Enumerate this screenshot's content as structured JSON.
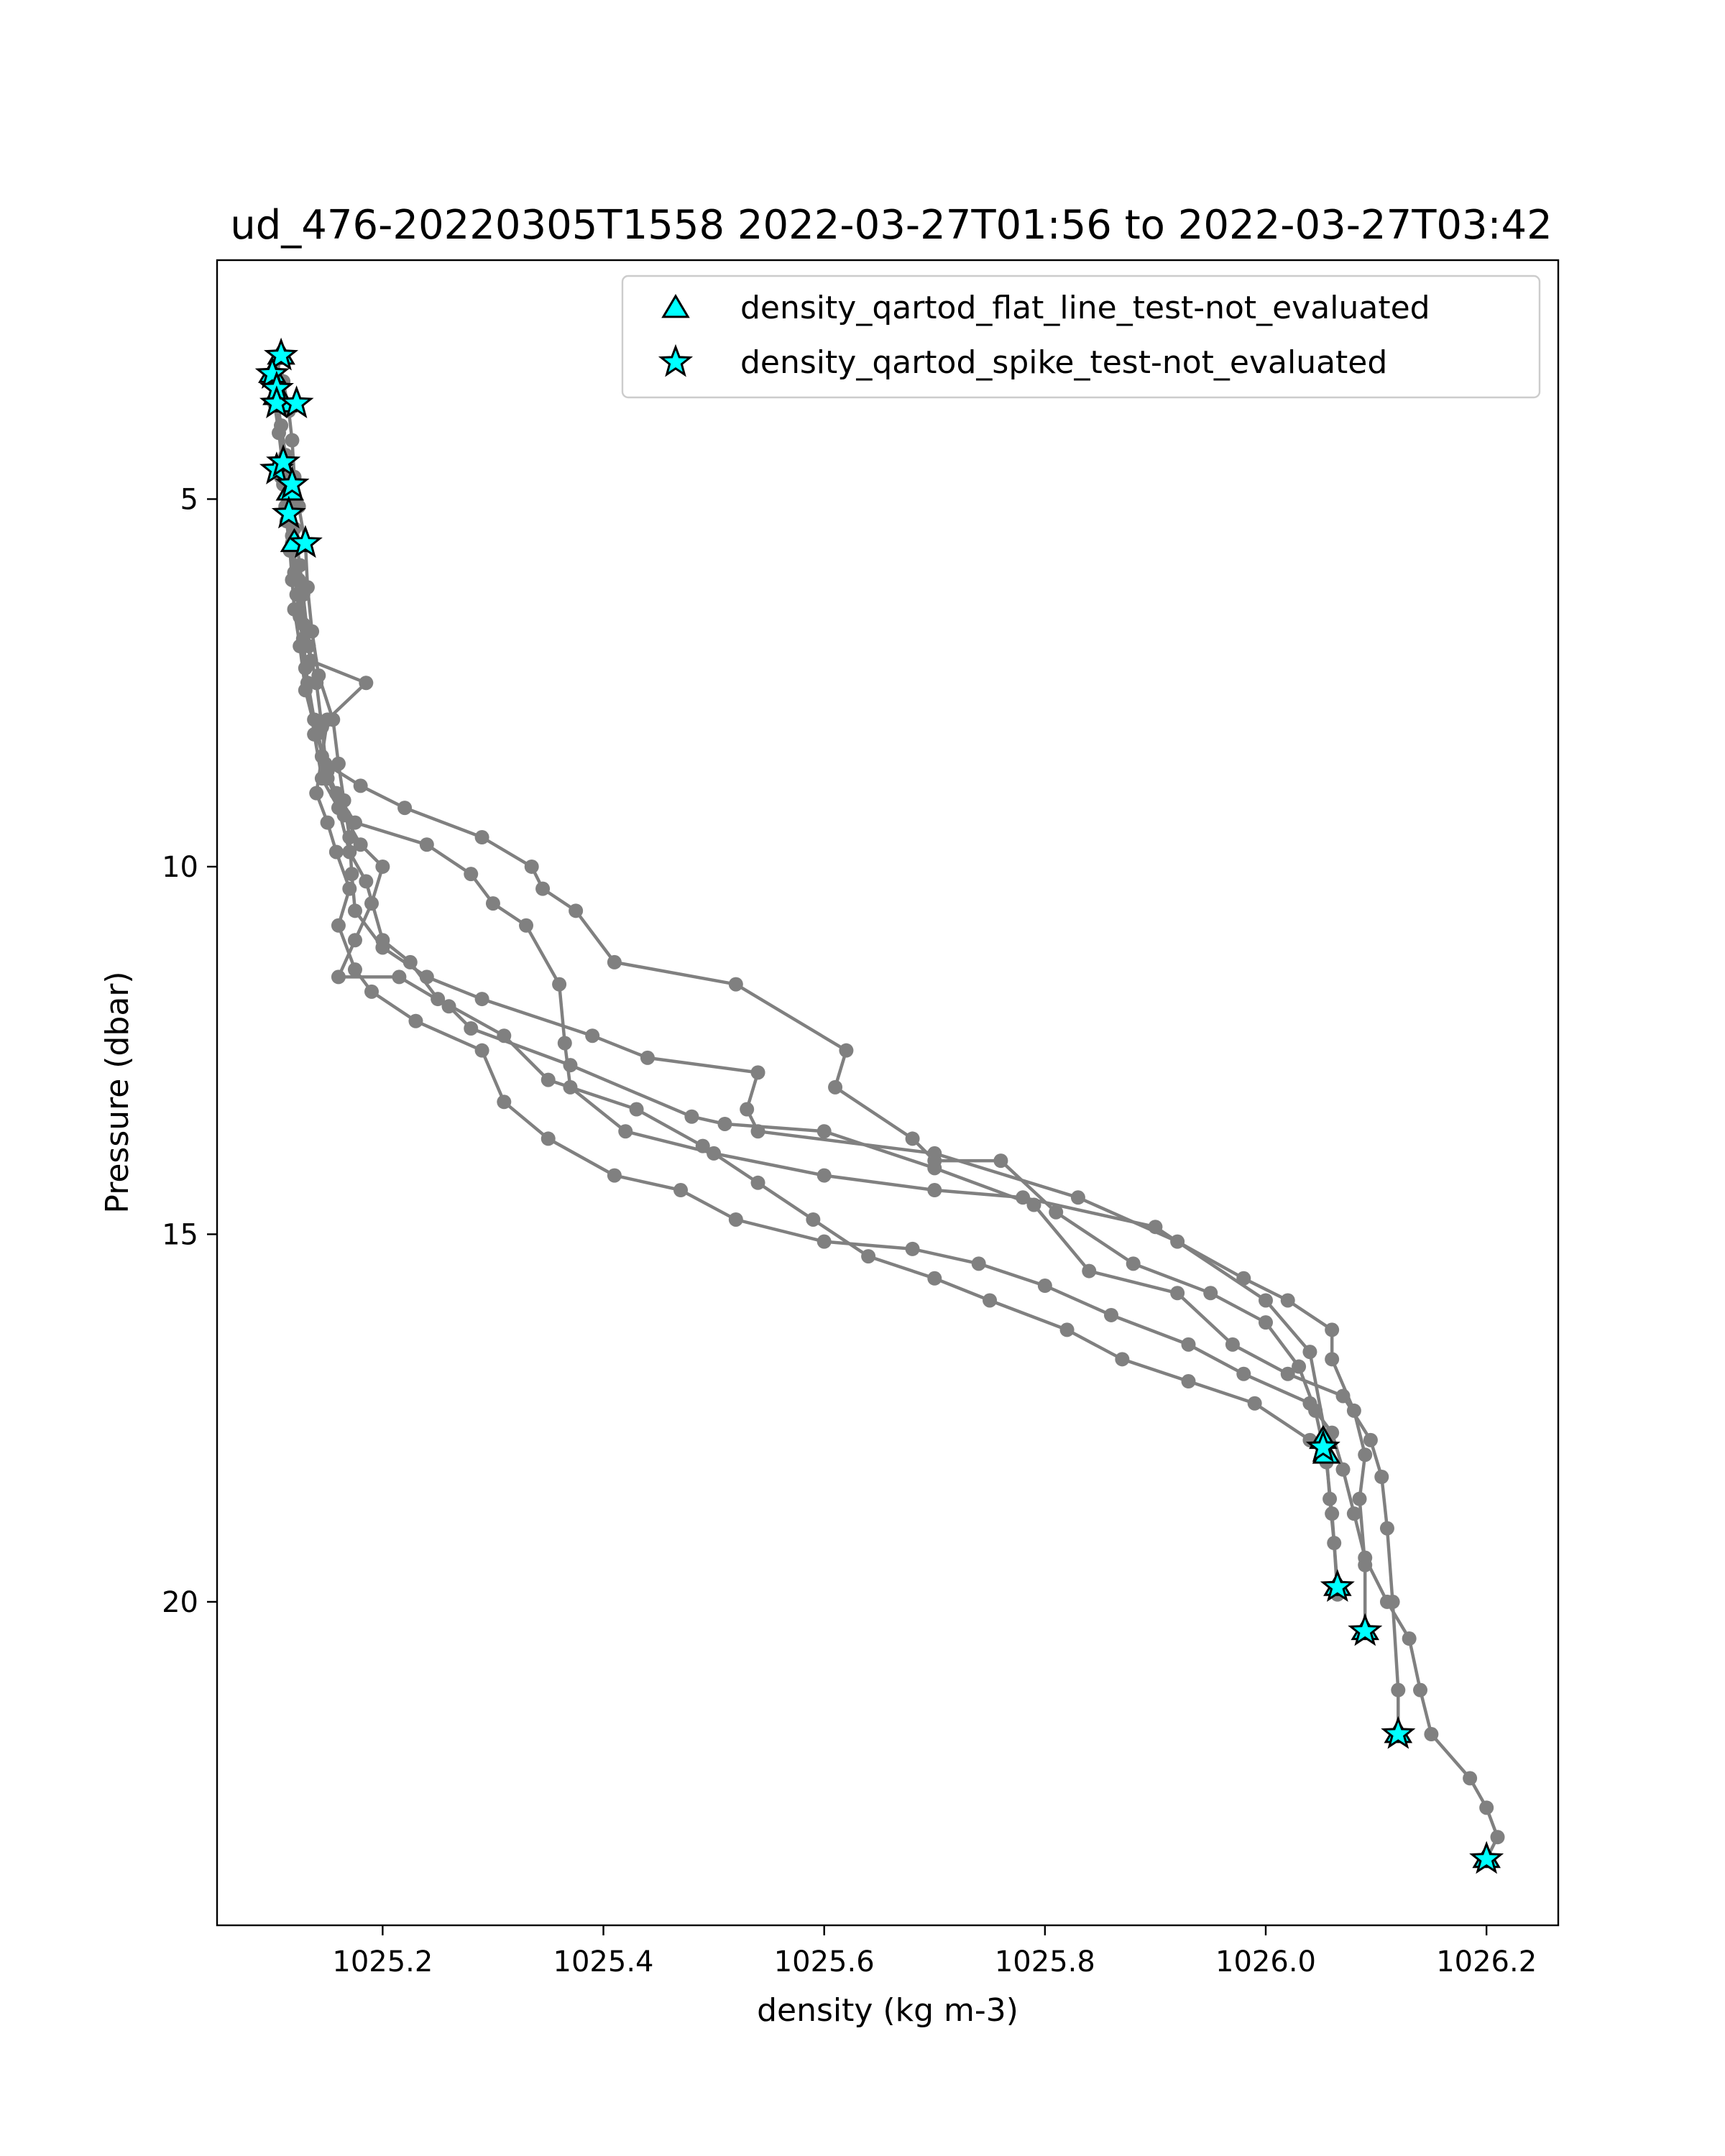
{
  "chart_data": {
    "type": "scatter",
    "title": "ud_476-20220305T1558 2022-03-27T01:56 to 2022-03-27T03:42",
    "xlabel": "density (kg m-3)",
    "ylabel": "Pressure (dbar)",
    "xlim": [
      1025.05,
      1026.265
    ],
    "ylim": [
      24.4,
      1.75
    ],
    "y_inverted": true,
    "x_ticks": [
      1025.2,
      1025.4,
      1025.6,
      1025.8,
      1026.0,
      1026.2
    ],
    "x_tick_labels": [
      "1025.2",
      "1025.4",
      "1025.6",
      "1025.8",
      "1026.0",
      "1026.2"
    ],
    "y_ticks": [
      5,
      10,
      15,
      20
    ],
    "y_tick_labels": [
      "5",
      "10",
      "15",
      "20"
    ],
    "grid": false,
    "legend_position": "top-right",
    "colors": {
      "profile": "#808080",
      "marker_fill": "#00ffff",
      "marker_edge": "#000000"
    },
    "profiles": [
      {
        "points": [
          [
            1025.108,
            3.05
          ],
          [
            1025.104,
            3.3
          ],
          [
            1025.105,
            3.5
          ],
          [
            1025.104,
            3.7
          ],
          [
            1025.108,
            4.0
          ],
          [
            1025.112,
            4.4
          ],
          [
            1025.11,
            4.8
          ],
          [
            1025.113,
            5.3
          ],
          [
            1025.116,
            5.7
          ],
          [
            1025.118,
            6.1
          ],
          [
            1025.12,
            6.5
          ],
          [
            1025.125,
            7.0
          ],
          [
            1025.13,
            7.6
          ],
          [
            1025.14,
            8.2
          ],
          [
            1025.15,
            8.7
          ],
          [
            1025.158,
            9.0
          ],
          [
            1025.175,
            9.4
          ],
          [
            1025.24,
            9.7
          ],
          [
            1025.28,
            10.1
          ],
          [
            1025.3,
            10.5
          ],
          [
            1025.33,
            10.8
          ],
          [
            1025.36,
            11.6
          ],
          [
            1025.365,
            12.4
          ],
          [
            1025.37,
            13.0
          ],
          [
            1025.42,
            13.6
          ],
          [
            1025.5,
            13.9
          ],
          [
            1025.6,
            14.2
          ],
          [
            1025.7,
            14.4
          ],
          [
            1025.78,
            14.5
          ],
          [
            1025.9,
            14.9
          ],
          [
            1026.0,
            15.9
          ],
          [
            1026.04,
            16.6
          ],
          [
            1026.055,
            17.8
          ],
          [
            1026.052,
            18.0
          ]
        ]
      },
      {
        "points": [
          [
            1025.1,
            3.3
          ],
          [
            1025.102,
            3.7
          ],
          [
            1025.106,
            4.1
          ],
          [
            1025.11,
            4.6
          ],
          [
            1025.115,
            5.0
          ],
          [
            1025.118,
            5.5
          ],
          [
            1025.12,
            6.0
          ],
          [
            1025.125,
            6.6
          ],
          [
            1025.13,
            7.3
          ],
          [
            1025.138,
            8.0
          ],
          [
            1025.148,
            8.6
          ],
          [
            1025.18,
            8.9
          ],
          [
            1025.22,
            9.2
          ],
          [
            1025.29,
            9.6
          ],
          [
            1025.335,
            10.0
          ],
          [
            1025.345,
            10.3
          ],
          [
            1025.375,
            10.6
          ],
          [
            1025.41,
            11.3
          ],
          [
            1025.52,
            11.6
          ],
          [
            1025.62,
            12.5
          ],
          [
            1025.61,
            13.0
          ],
          [
            1025.68,
            13.7
          ],
          [
            1025.7,
            14.0
          ],
          [
            1025.76,
            14.0
          ],
          [
            1025.81,
            14.7
          ],
          [
            1025.88,
            15.4
          ],
          [
            1025.95,
            15.8
          ],
          [
            1026.0,
            16.2
          ],
          [
            1026.03,
            16.8
          ],
          [
            1026.045,
            17.4
          ],
          [
            1026.055,
            18.1
          ],
          [
            1026.06,
            18.8
          ],
          [
            1026.065,
            19.8
          ]
        ]
      },
      {
        "points": [
          [
            1025.11,
            3.4
          ],
          [
            1025.115,
            3.8
          ],
          [
            1025.118,
            4.2
          ],
          [
            1025.12,
            4.7
          ],
          [
            1025.124,
            5.1
          ],
          [
            1025.13,
            5.6
          ],
          [
            1025.132,
            6.2
          ],
          [
            1025.136,
            6.8
          ],
          [
            1025.142,
            7.4
          ],
          [
            1025.155,
            8.0
          ],
          [
            1025.16,
            8.6
          ],
          [
            1025.165,
            9.1
          ],
          [
            1025.17,
            9.6
          ],
          [
            1025.172,
            10.1
          ],
          [
            1025.175,
            10.6
          ],
          [
            1025.2,
            11.1
          ],
          [
            1025.24,
            11.5
          ],
          [
            1025.29,
            11.8
          ],
          [
            1025.39,
            12.3
          ],
          [
            1025.44,
            12.6
          ],
          [
            1025.54,
            12.8
          ],
          [
            1025.53,
            13.3
          ],
          [
            1025.54,
            13.6
          ],
          [
            1025.7,
            13.9
          ],
          [
            1025.83,
            14.5
          ],
          [
            1025.92,
            15.1
          ],
          [
            1025.98,
            15.6
          ],
          [
            1026.02,
            15.9
          ],
          [
            1026.06,
            16.3
          ],
          [
            1026.06,
            16.7
          ],
          [
            1026.08,
            17.4
          ],
          [
            1026.09,
            18.0
          ],
          [
            1026.085,
            18.6
          ],
          [
            1026.09,
            19.5
          ],
          [
            1026.09,
            20.4
          ]
        ]
      },
      {
        "points": [
          [
            1025.104,
            3.6
          ],
          [
            1025.108,
            4.0
          ],
          [
            1025.112,
            4.5
          ],
          [
            1025.116,
            5.0
          ],
          [
            1025.12,
            5.4
          ],
          [
            1025.125,
            5.9
          ],
          [
            1025.128,
            6.3
          ],
          [
            1025.133,
            7.0
          ],
          [
            1025.14,
            7.5
          ],
          [
            1025.145,
            8.1
          ],
          [
            1025.15,
            8.8
          ],
          [
            1025.165,
            9.3
          ],
          [
            1025.18,
            9.7
          ],
          [
            1025.2,
            10.0
          ],
          [
            1025.19,
            10.5
          ],
          [
            1025.175,
            11.0
          ],
          [
            1025.16,
            11.5
          ],
          [
            1025.215,
            11.5
          ],
          [
            1025.26,
            11.9
          ],
          [
            1025.28,
            12.2
          ],
          [
            1025.37,
            12.7
          ],
          [
            1025.48,
            13.4
          ],
          [
            1025.51,
            13.5
          ],
          [
            1025.6,
            13.6
          ],
          [
            1025.7,
            14.1
          ],
          [
            1025.79,
            14.6
          ],
          [
            1025.84,
            15.5
          ],
          [
            1025.92,
            15.8
          ],
          [
            1025.97,
            16.5
          ],
          [
            1026.02,
            16.9
          ],
          [
            1026.07,
            17.2
          ],
          [
            1026.095,
            17.8
          ],
          [
            1026.105,
            18.3
          ],
          [
            1026.11,
            19.0
          ],
          [
            1026.115,
            20.0
          ],
          [
            1026.12,
            21.2
          ],
          [
            1026.12,
            21.8
          ]
        ]
      },
      {
        "points": [
          [
            1025.108,
            4.7
          ],
          [
            1025.112,
            5.1
          ],
          [
            1025.118,
            5.6
          ],
          [
            1025.124,
            6.1
          ],
          [
            1025.128,
            6.7
          ],
          [
            1025.135,
            7.2
          ],
          [
            1025.185,
            7.5
          ],
          [
            1025.15,
            8.0
          ],
          [
            1025.145,
            8.5
          ],
          [
            1025.14,
            9.0
          ],
          [
            1025.15,
            9.4
          ],
          [
            1025.158,
            9.8
          ],
          [
            1025.17,
            10.3
          ],
          [
            1025.16,
            10.8
          ],
          [
            1025.175,
            11.4
          ],
          [
            1025.19,
            11.7
          ],
          [
            1025.23,
            12.1
          ],
          [
            1025.29,
            12.5
          ],
          [
            1025.31,
            13.2
          ],
          [
            1025.35,
            13.7
          ],
          [
            1025.41,
            14.2
          ],
          [
            1025.47,
            14.4
          ],
          [
            1025.52,
            14.8
          ],
          [
            1025.6,
            15.1
          ],
          [
            1025.68,
            15.2
          ],
          [
            1025.74,
            15.4
          ],
          [
            1025.8,
            15.7
          ],
          [
            1025.86,
            16.1
          ],
          [
            1025.93,
            16.5
          ],
          [
            1025.98,
            16.9
          ],
          [
            1026.04,
            17.3
          ],
          [
            1026.06,
            17.7
          ],
          [
            1026.07,
            18.2
          ],
          [
            1026.08,
            18.8
          ],
          [
            1026.09,
            19.4
          ],
          [
            1026.11,
            20.0
          ],
          [
            1026.13,
            20.5
          ],
          [
            1026.14,
            21.2
          ],
          [
            1026.15,
            21.8
          ],
          [
            1026.185,
            22.4
          ],
          [
            1026.2,
            22.8
          ],
          [
            1026.21,
            23.2
          ],
          [
            1026.2,
            23.5
          ]
        ]
      },
      {
        "points": [
          [
            1025.115,
            5.2
          ],
          [
            1025.12,
            5.7
          ],
          [
            1025.122,
            6.3
          ],
          [
            1025.128,
            6.9
          ],
          [
            1025.132,
            7.5
          ],
          [
            1025.138,
            8.2
          ],
          [
            1025.145,
            8.8
          ],
          [
            1025.16,
            9.2
          ],
          [
            1025.17,
            9.8
          ],
          [
            1025.185,
            10.2
          ],
          [
            1025.2,
            11.0
          ],
          [
            1025.225,
            11.3
          ],
          [
            1025.25,
            11.8
          ],
          [
            1025.31,
            12.3
          ],
          [
            1025.35,
            12.9
          ],
          [
            1025.43,
            13.3
          ],
          [
            1025.49,
            13.8
          ],
          [
            1025.54,
            14.3
          ],
          [
            1025.59,
            14.8
          ],
          [
            1025.64,
            15.3
          ],
          [
            1025.7,
            15.6
          ],
          [
            1025.75,
            15.9
          ],
          [
            1025.82,
            16.3
          ],
          [
            1025.87,
            16.7
          ],
          [
            1025.93,
            17.0
          ],
          [
            1025.99,
            17.3
          ],
          [
            1026.04,
            17.8
          ],
          [
            1026.055,
            18.0
          ],
          [
            1026.058,
            18.6
          ],
          [
            1026.062,
            19.2
          ],
          [
            1026.065,
            19.9
          ]
        ]
      }
    ],
    "flags": {
      "flat_line": [
        [
          1025.108,
          3.05
        ],
        [
          1025.1,
          3.3
        ],
        [
          1025.104,
          3.6
        ],
        [
          1025.11,
          3.7
        ],
        [
          1025.116,
          4.9
        ],
        [
          1025.12,
          5.6
        ],
        [
          1026.052,
          17.8
        ],
        [
          1026.055,
          18.0
        ],
        [
          1026.065,
          19.8
        ],
        [
          1026.09,
          20.4
        ],
        [
          1026.12,
          21.8
        ],
        [
          1026.2,
          23.5
        ]
      ],
      "spike": [
        [
          1025.108,
          3.05
        ],
        [
          1025.1,
          3.3
        ],
        [
          1025.104,
          3.5
        ],
        [
          1025.104,
          3.7
        ],
        [
          1025.122,
          3.7
        ],
        [
          1025.104,
          4.6
        ],
        [
          1025.11,
          4.5
        ],
        [
          1025.118,
          4.8
        ],
        [
          1025.115,
          5.2
        ],
        [
          1025.13,
          5.6
        ],
        [
          1026.052,
          17.9
        ],
        [
          1026.065,
          19.8
        ],
        [
          1026.09,
          20.4
        ],
        [
          1026.12,
          21.8
        ],
        [
          1026.2,
          23.5
        ]
      ]
    },
    "legend": [
      {
        "marker": "triangle",
        "label": "density_qartod_flat_line_test-not_evaluated"
      },
      {
        "marker": "star",
        "label": "density_qartod_spike_test-not_evaluated"
      }
    ]
  }
}
